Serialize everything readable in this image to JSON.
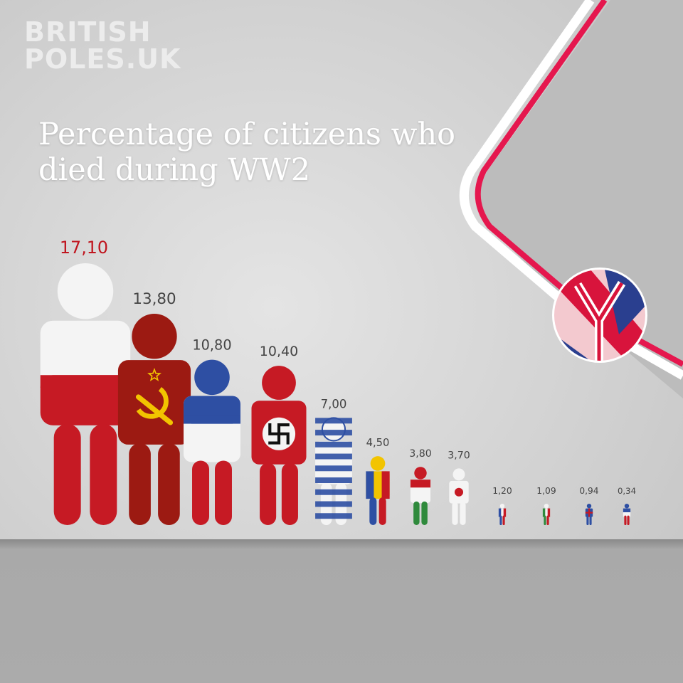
{
  "watermark": [
    "BRITISH",
    "POLES.UK"
  ],
  "title_lines": [
    "Percentage of citizens who",
    "died during WW2"
  ],
  "colors": {
    "red": "#c61a24",
    "dark_red": "#9c1a12",
    "white": "#f4f4f4",
    "blue": "#2e4fa3",
    "yellow": "#f2c400",
    "green": "#2f8a3c",
    "accent_pink": "#e5174e",
    "label_dark": "#444444",
    "label_highlight": "#c0161f"
  },
  "chart_data": {
    "type": "bar",
    "title": "Percentage of citizens who died during WW2",
    "unit": "%",
    "categories": [
      "Poland",
      "USSR",
      "Yugoslavia",
      "Germany",
      "Greece",
      "Romania",
      "Hungary",
      "Japan",
      "France",
      "Italy",
      "UK",
      "USA"
    ],
    "value_labels": [
      "17,10",
      "13,80",
      "10,80",
      "10,40",
      "7,00",
      "4,50",
      "3,80",
      "3,70",
      "1,20",
      "1,09",
      "0,94",
      "0,34"
    ],
    "values": [
      17.1,
      13.8,
      10.8,
      10.4,
      7.0,
      4.5,
      3.8,
      3.7,
      1.2,
      1.09,
      0.94,
      0.34
    ],
    "highlight": "Poland",
    "icons": [
      "person-icon-poland-flag",
      "person-icon-ussr-flag",
      "person-icon-yugoslavia-flag",
      "person-icon-germany-flag",
      "person-icon-greece-flag",
      "person-icon-romania-flag",
      "person-icon-hungary-flag",
      "person-icon-japan-flag",
      "person-icon-france-flag",
      "person-icon-italy-flag",
      "person-icon-uk-flag",
      "person-icon-usa-flag"
    ],
    "xlabel": "",
    "ylabel": "",
    "grid": false,
    "legend": "none"
  }
}
